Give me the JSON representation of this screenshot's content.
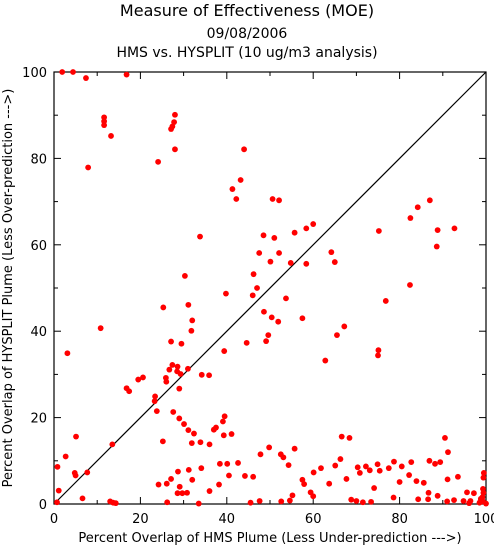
{
  "chart_data": {
    "type": "scatter",
    "title": "Measure of Effectiveness (MOE)",
    "date": "09/08/2006",
    "subtitle": "HMS vs. HYSPLIT  (10 ug/m3 analysis)",
    "xlabel": "Percent Overlap of HMS Plume (Less Under-prediction --->)",
    "ylabel": "Percent Overlap of HYSPLIT Plume (Less Over-prediction --->)",
    "xlim": [
      0,
      100
    ],
    "ylim": [
      0,
      100
    ],
    "xticks": [
      "0",
      "20",
      "40",
      "60",
      "80",
      "100"
    ],
    "yticks": [
      "0",
      "20",
      "40",
      "60",
      "80",
      "100"
    ],
    "reference_line": "y = x",
    "point_color": "#ff0000",
    "series": [
      {
        "points": [
          [
            1.9,
            100
          ],
          [
            4.4,
            100
          ],
          [
            7.4,
            98.6
          ],
          [
            16.8,
            99.4
          ],
          [
            11.6,
            89.5
          ],
          [
            11.6,
            88.6
          ],
          [
            11.6,
            87.7
          ],
          [
            13.2,
            85.2
          ],
          [
            28.0,
            90.1
          ],
          [
            27.8,
            88.4
          ],
          [
            27.4,
            87.4
          ],
          [
            27.1,
            86.8
          ],
          [
            28.0,
            82.1
          ],
          [
            7.9,
            77.9
          ],
          [
            24.1,
            79.2
          ],
          [
            44.0,
            82.1
          ],
          [
            43.2,
            75.0
          ],
          [
            41.3,
            72.9
          ],
          [
            42.2,
            70.6
          ],
          [
            50.6,
            70.6
          ],
          [
            52.1,
            70.3
          ],
          [
            87.0,
            70.3
          ],
          [
            84.2,
            68.7
          ],
          [
            82.5,
            66.2
          ],
          [
            60.0,
            64.8
          ],
          [
            58.4,
            63.8
          ],
          [
            92.7,
            63.8
          ],
          [
            88.8,
            63.4
          ],
          [
            55.7,
            62.8
          ],
          [
            48.5,
            62.2
          ],
          [
            51.0,
            61.6
          ],
          [
            75.2,
            63.2
          ],
          [
            33.8,
            61.9
          ],
          [
            47.5,
            58.1
          ],
          [
            52.1,
            58.1
          ],
          [
            50.1,
            56.1
          ],
          [
            54.8,
            55.8
          ],
          [
            58.4,
            55.6
          ],
          [
            64.2,
            58.3
          ],
          [
            65.0,
            56.0
          ],
          [
            88.6,
            59.6
          ],
          [
            30.3,
            52.8
          ],
          [
            46.2,
            53.2
          ],
          [
            82.4,
            50.7
          ],
          [
            47.0,
            50.0
          ],
          [
            46.0,
            48.3
          ],
          [
            39.8,
            48.7
          ],
          [
            53.7,
            47.6
          ],
          [
            31.1,
            46.1
          ],
          [
            76.8,
            47.0
          ],
          [
            25.3,
            45.5
          ],
          [
            48.6,
            44.5
          ],
          [
            32.0,
            42.5
          ],
          [
            50.4,
            43.2
          ],
          [
            51.9,
            42.2
          ],
          [
            57.5,
            43.0
          ],
          [
            31.8,
            40.1
          ],
          [
            65.5,
            39.1
          ],
          [
            10.8,
            40.7
          ],
          [
            67.2,
            41.1
          ],
          [
            49.6,
            39.1
          ],
          [
            49.1,
            37.7
          ],
          [
            44.6,
            37.3
          ],
          [
            29.5,
            37.1
          ],
          [
            27.1,
            37.6
          ],
          [
            3.1,
            34.9
          ],
          [
            39.4,
            35.4
          ],
          [
            75.1,
            35.6
          ],
          [
            75.0,
            34.4
          ],
          [
            62.8,
            33.2
          ],
          [
            27.4,
            32.2
          ],
          [
            28.6,
            31.8
          ],
          [
            26.7,
            31.1
          ],
          [
            28.5,
            30.7
          ],
          [
            31.0,
            31.3
          ],
          [
            29.3,
            30.1
          ],
          [
            34.2,
            29.9
          ],
          [
            35.9,
            29.8
          ],
          [
            25.9,
            29.2
          ],
          [
            19.5,
            28.8
          ],
          [
            20.6,
            29.3
          ],
          [
            26.0,
            28.3
          ],
          [
            29.0,
            26.7
          ],
          [
            16.8,
            26.8
          ],
          [
            17.4,
            26.1
          ],
          [
            23.4,
            24.9
          ],
          [
            23.3,
            23.8
          ],
          [
            23.8,
            21.5
          ],
          [
            27.6,
            21.3
          ],
          [
            29.0,
            19.8
          ],
          [
            30.1,
            18.5
          ],
          [
            39.5,
            20.3
          ],
          [
            39.1,
            19.1
          ],
          [
            37.5,
            17.7
          ],
          [
            37.0,
            17.2
          ],
          [
            31.1,
            17.1
          ],
          [
            32.4,
            16.3
          ],
          [
            13.5,
            13.8
          ],
          [
            5.1,
            15.6
          ],
          [
            2.7,
            11.0
          ],
          [
            25.2,
            14.5
          ],
          [
            31.9,
            14.1
          ],
          [
            33.9,
            14.3
          ],
          [
            39.3,
            15.9
          ],
          [
            41.1,
            16.2
          ],
          [
            36.0,
            13.8
          ],
          [
            66.6,
            15.6
          ],
          [
            68.4,
            15.3
          ],
          [
            90.5,
            15.3
          ],
          [
            0.8,
            8.6
          ],
          [
            4.8,
            7.2
          ],
          [
            5.0,
            6.6
          ],
          [
            7.7,
            7.3
          ],
          [
            31.2,
            7.9
          ],
          [
            28.7,
            7.5
          ],
          [
            34.1,
            8.3
          ],
          [
            32.0,
            5.6
          ],
          [
            27.1,
            5.8
          ],
          [
            26.1,
            4.7
          ],
          [
            24.2,
            4.5
          ],
          [
            38.4,
            9.3
          ],
          [
            40.1,
            9.3
          ],
          [
            40.5,
            6.6
          ],
          [
            42.6,
            9.5
          ],
          [
            44.2,
            6.5
          ],
          [
            46.1,
            6.3
          ],
          [
            47.8,
            11.5
          ],
          [
            49.8,
            13.1
          ],
          [
            52.5,
            11.5
          ],
          [
            53.1,
            10.8
          ],
          [
            54.3,
            9.0
          ],
          [
            55.7,
            12.8
          ],
          [
            57.5,
            5.6
          ],
          [
            60.1,
            7.3
          ],
          [
            61.8,
            8.3
          ],
          [
            65.1,
            8.9
          ],
          [
            66.3,
            10.4
          ],
          [
            67.7,
            5.8
          ],
          [
            70.3,
            8.5
          ],
          [
            70.8,
            7.2
          ],
          [
            72.2,
            8.7
          ],
          [
            73.1,
            7.8
          ],
          [
            74.9,
            9.2
          ],
          [
            75.4,
            7.7
          ],
          [
            77.5,
            8.3
          ],
          [
            78.7,
            9.8
          ],
          [
            80.5,
            8.7
          ],
          [
            82.7,
            9.7
          ],
          [
            82.2,
            6.7
          ],
          [
            83.9,
            5.3
          ],
          [
            85.6,
            4.9
          ],
          [
            86.9,
            10.0
          ],
          [
            88.2,
            9.3
          ],
          [
            89.4,
            9.7
          ],
          [
            91.2,
            12.0
          ],
          [
            93.5,
            6.3
          ],
          [
            95.6,
            2.7
          ],
          [
            97.2,
            2.5
          ],
          [
            99.5,
            7.2
          ],
          [
            99.4,
            6.1
          ],
          [
            99.3,
            3.5
          ],
          [
            99.4,
            2.6
          ],
          [
            99.2,
            1.6
          ],
          [
            98.8,
            1.2
          ],
          [
            99.3,
            0.6
          ],
          [
            98.5,
            0.3
          ],
          [
            96.4,
            0.7
          ],
          [
            92.6,
            0.9
          ],
          [
            91.0,
            0.6
          ],
          [
            86.6,
            1.1
          ],
          [
            84.3,
            1.1
          ],
          [
            78.6,
            1.5
          ],
          [
            73.4,
            0.5
          ],
          [
            71.5,
            0.4
          ],
          [
            70.0,
            0.7
          ],
          [
            68.8,
            1.0
          ],
          [
            60.0,
            1.8
          ],
          [
            55.2,
            2.0
          ],
          [
            52.6,
            0.6
          ],
          [
            47.6,
            0.7
          ],
          [
            45.5,
            0.3
          ],
          [
            29.7,
            2.5
          ],
          [
            28.6,
            2.5
          ],
          [
            30.8,
            2.6
          ],
          [
            36.0,
            3.0
          ],
          [
            29.1,
            4.0
          ],
          [
            38.2,
            4.5
          ],
          [
            57.9,
            4.6
          ],
          [
            59.4,
            2.7
          ],
          [
            63.7,
            4.7
          ],
          [
            74.1,
            3.7
          ],
          [
            80.0,
            5.1
          ],
          [
            86.7,
            2.6
          ],
          [
            91.1,
            5.7
          ],
          [
            94.8,
            0.7
          ],
          [
            1.1,
            3.1
          ],
          [
            0.7,
            0.4
          ],
          [
            6.6,
            1.3
          ],
          [
            13.0,
            0.6
          ],
          [
            13.7,
            0.3
          ],
          [
            14.3,
            0.2
          ],
          [
            26.2,
            0.4
          ],
          [
            33.5,
            0.1
          ],
          [
            54.6,
            0.8
          ],
          [
            88.8,
            1.9
          ],
          [
            96.1,
            0.2
          ],
          [
            100,
            0.1
          ]
        ]
      }
    ]
  }
}
